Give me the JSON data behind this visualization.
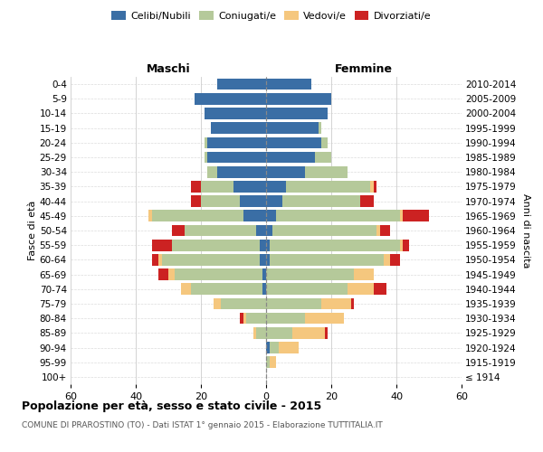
{
  "age_groups": [
    "100+",
    "95-99",
    "90-94",
    "85-89",
    "80-84",
    "75-79",
    "70-74",
    "65-69",
    "60-64",
    "55-59",
    "50-54",
    "45-49",
    "40-44",
    "35-39",
    "30-34",
    "25-29",
    "20-24",
    "15-19",
    "10-14",
    "5-9",
    "0-4"
  ],
  "birth_years": [
    "≤ 1914",
    "1915-1919",
    "1920-1924",
    "1925-1929",
    "1930-1934",
    "1935-1939",
    "1940-1944",
    "1945-1949",
    "1950-1954",
    "1955-1959",
    "1960-1964",
    "1965-1969",
    "1970-1974",
    "1975-1979",
    "1980-1984",
    "1985-1989",
    "1990-1994",
    "1995-1999",
    "2000-2004",
    "2005-2009",
    "2010-2014"
  ],
  "colors": {
    "celibi": "#3a6ea5",
    "coniugati": "#b5c99a",
    "vedovi": "#f5c77e",
    "divorziati": "#cc2222"
  },
  "maschi": {
    "celibi": [
      0,
      0,
      0,
      0,
      0,
      0,
      1,
      1,
      2,
      2,
      3,
      7,
      8,
      10,
      15,
      18,
      18,
      17,
      19,
      22,
      15
    ],
    "coniugati": [
      0,
      0,
      0,
      3,
      6,
      14,
      22,
      27,
      30,
      27,
      22,
      28,
      12,
      10,
      3,
      1,
      1,
      0,
      0,
      0,
      0
    ],
    "vedovi": [
      0,
      0,
      0,
      1,
      1,
      2,
      3,
      2,
      1,
      0,
      0,
      1,
      0,
      0,
      0,
      0,
      0,
      0,
      0,
      0,
      0
    ],
    "divorziati": [
      0,
      0,
      0,
      0,
      1,
      0,
      0,
      3,
      2,
      6,
      4,
      0,
      3,
      3,
      0,
      0,
      0,
      0,
      0,
      0,
      0
    ]
  },
  "femmine": {
    "celibi": [
      0,
      0,
      1,
      0,
      0,
      0,
      0,
      0,
      1,
      1,
      2,
      3,
      5,
      6,
      12,
      15,
      17,
      16,
      19,
      20,
      14
    ],
    "coniugati": [
      0,
      1,
      3,
      8,
      12,
      17,
      25,
      27,
      35,
      40,
      32,
      38,
      24,
      26,
      13,
      5,
      2,
      1,
      0,
      0,
      0
    ],
    "vedovi": [
      0,
      2,
      6,
      10,
      12,
      9,
      8,
      6,
      2,
      1,
      1,
      1,
      0,
      1,
      0,
      0,
      0,
      0,
      0,
      0,
      0
    ],
    "divorziati": [
      0,
      0,
      0,
      1,
      0,
      1,
      4,
      0,
      3,
      2,
      3,
      8,
      4,
      1,
      0,
      0,
      0,
      0,
      0,
      0,
      0
    ]
  },
  "xlim": 60,
  "title": "Popolazione per età, sesso e stato civile - 2015",
  "subtitle": "COMUNE DI PRAROSTINO (TO) - Dati ISTAT 1° gennaio 2015 - Elaborazione TUTTITALIA.IT",
  "xlabel_left": "Maschi",
  "xlabel_right": "Femmine",
  "ylabel_left": "Fasce di età",
  "ylabel_right": "Anni di nascita",
  "legend_labels": [
    "Celibi/Nubili",
    "Coniugati/e",
    "Vedovi/e",
    "Divorziati/e"
  ],
  "background_color": "#ffffff",
  "grid_color": "#cccccc"
}
